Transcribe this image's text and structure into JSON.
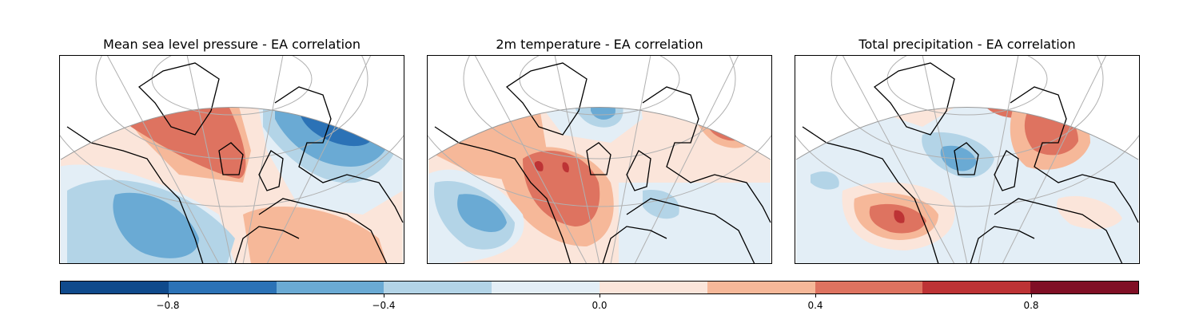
{
  "panels": [
    {
      "title": "Mean sea level pressure - EA correlation"
    },
    {
      "title": "2m temperature - EA correlation"
    },
    {
      "title": "Total precipitation - EA correlation"
    }
  ],
  "colorbar": {
    "colors": [
      "#0f4a8c",
      "#2b72b6",
      "#6aaad4",
      "#b3d4e7",
      "#e3eef6",
      "#fbe5da",
      "#f6b899",
      "#de7360",
      "#bd3335",
      "#800f25"
    ],
    "ticks": [
      {
        "value": -0.8,
        "label": "−0.8"
      },
      {
        "value": -0.4,
        "label": "−0.4"
      },
      {
        "value": 0.0,
        "label": "0.0"
      },
      {
        "value": 0.4,
        "label": "0.4"
      },
      {
        "value": 0.8,
        "label": "0.8"
      }
    ],
    "range": [
      -1.0,
      1.0
    ]
  }
}
